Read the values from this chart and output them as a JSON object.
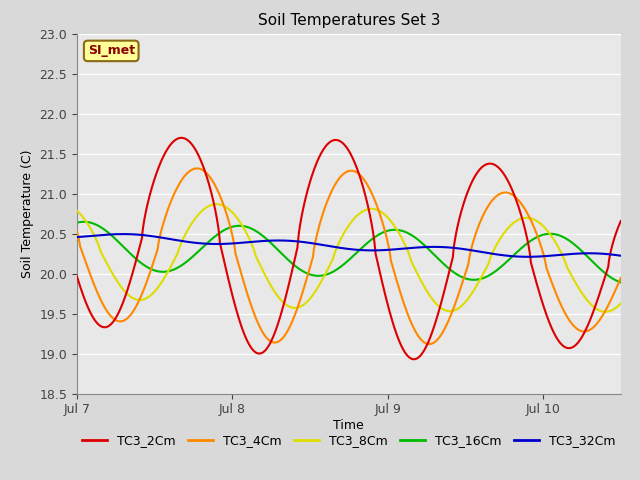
{
  "title": "Soil Temperatures Set 3",
  "xlabel": "Time",
  "ylabel": "Soil Temperature (C)",
  "ylim": [
    18.5,
    23.0
  ],
  "xlim_days": [
    0,
    3.5
  ],
  "x_ticks_days": [
    0,
    1,
    2,
    3
  ],
  "x_tick_labels": [
    "Jul 7",
    "Jul 8",
    "Jul 9",
    "Jul 10"
  ],
  "fig_bg_color": "#d9d9d9",
  "plot_bg_color": "#e8e8e8",
  "grid_color": "#ffffff",
  "annotation_text": "SI_met",
  "annotation_color": "#8B0000",
  "annotation_bg": "#ffff99",
  "annotation_border": "#8B6914",
  "series": {
    "TC3_2Cm": {
      "color": "#dd0000",
      "lw": 1.5
    },
    "TC3_4Cm": {
      "color": "#ff8800",
      "lw": 1.5
    },
    "TC3_8Cm": {
      "color": "#dddd00",
      "lw": 1.5
    },
    "TC3_16Cm": {
      "color": "#00bb00",
      "lw": 1.5
    },
    "TC3_32Cm": {
      "color": "#0000cc",
      "lw": 1.5
    }
  },
  "yticks": [
    18.5,
    19.0,
    19.5,
    20.0,
    20.5,
    21.0,
    21.5,
    22.0,
    22.5,
    23.0
  ]
}
